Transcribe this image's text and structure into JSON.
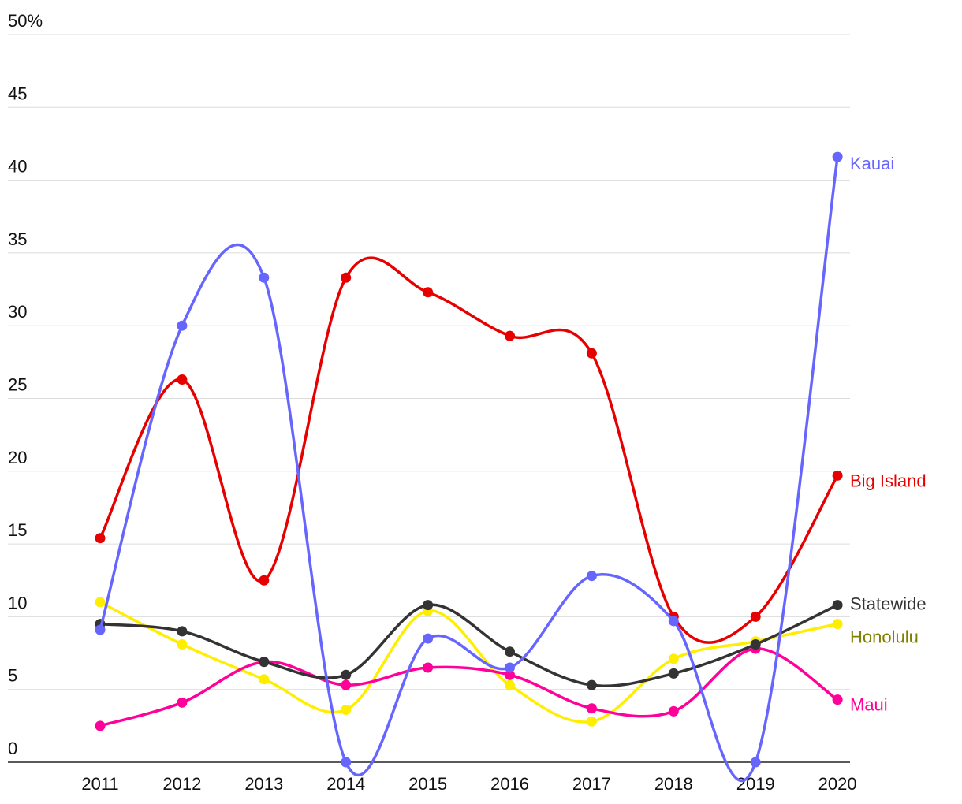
{
  "chart_data": {
    "type": "line",
    "title": "",
    "xlabel": "",
    "ylabel": "",
    "x": [
      2011,
      2012,
      2013,
      2014,
      2015,
      2016,
      2017,
      2018,
      2019,
      2020
    ],
    "ylim": [
      0,
      50
    ],
    "y_ticks": [
      {
        "value": 0,
        "label": "0"
      },
      {
        "value": 5,
        "label": "5"
      },
      {
        "value": 10,
        "label": "10"
      },
      {
        "value": 15,
        "label": "15"
      },
      {
        "value": 20,
        "label": "20"
      },
      {
        "value": 25,
        "label": "25"
      },
      {
        "value": 30,
        "label": "30"
      },
      {
        "value": 35,
        "label": "35"
      },
      {
        "value": 40,
        "label": "40"
      },
      {
        "value": 45,
        "label": "45"
      },
      {
        "value": 50,
        "label": "50%"
      }
    ],
    "grid": true,
    "legend": "inline-right",
    "series": [
      {
        "name": "Kauai",
        "color": "#6666ff",
        "label_color": "#6666ff",
        "values": [
          9.1,
          30.0,
          33.3,
          0.0,
          8.5,
          6.5,
          12.8,
          9.7,
          0.0,
          41.6
        ]
      },
      {
        "name": "Big Island",
        "color": "#e60000",
        "label_color": "#e60000",
        "values": [
          15.4,
          26.3,
          12.5,
          33.3,
          32.3,
          29.3,
          28.1,
          10.0,
          10.0,
          19.7
        ]
      },
      {
        "name": "Honolulu",
        "color": "#ffee00",
        "label_color": "#808000",
        "values": [
          11.0,
          8.1,
          5.7,
          3.6,
          10.4,
          5.3,
          2.8,
          7.1,
          8.3,
          9.5
        ]
      },
      {
        "name": "Maui",
        "color": "#ff0099",
        "label_color": "#ff0099",
        "values": [
          2.5,
          4.1,
          6.9,
          5.3,
          6.5,
          6.0,
          3.7,
          3.5,
          7.8,
          4.3
        ]
      },
      {
        "name": "Statewide",
        "color": "#333333",
        "label_color": "#333333",
        "values": [
          9.5,
          9.0,
          6.9,
          6.0,
          10.8,
          7.6,
          5.3,
          6.1,
          8.1,
          10.8
        ]
      }
    ]
  }
}
